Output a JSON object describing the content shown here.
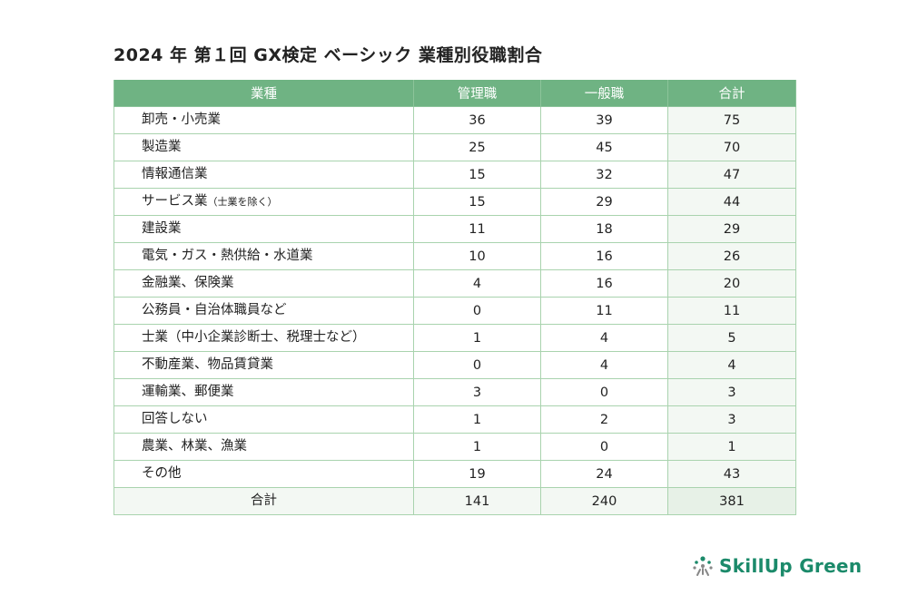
{
  "title": "2024 年 第１回 GX検定 ベーシック 業種別役職割合",
  "table": {
    "headers": [
      "業種",
      "管理職",
      "一般職",
      "合計"
    ],
    "rows": [
      {
        "label": "卸売・小売業",
        "sub": "",
        "manager": "36",
        "general": "39",
        "total": "75"
      },
      {
        "label": "製造業",
        "sub": "",
        "manager": "25",
        "general": "45",
        "total": "70"
      },
      {
        "label": "情報通信業",
        "sub": "",
        "manager": "15",
        "general": "32",
        "total": "47"
      },
      {
        "label": "サービス業",
        "sub": "（士業を除く）",
        "manager": "15",
        "general": "29",
        "total": "44"
      },
      {
        "label": "建設業",
        "sub": "",
        "manager": "11",
        "general": "18",
        "total": "29"
      },
      {
        "label": "電気・ガス・熱供給・水道業",
        "sub": "",
        "manager": "10",
        "general": "16",
        "total": "26"
      },
      {
        "label": "金融業、保険業",
        "sub": "",
        "manager": "4",
        "general": "16",
        "total": "20"
      },
      {
        "label": "公務員・自治体職員など",
        "sub": "",
        "manager": "0",
        "general": "11",
        "total": "11"
      },
      {
        "label": "士業（中小企業診断士、税理士など）",
        "sub": "",
        "manager": "1",
        "general": "4",
        "total": "5"
      },
      {
        "label": "不動産業、物品賃貸業",
        "sub": "",
        "manager": "0",
        "general": "4",
        "total": "4"
      },
      {
        "label": "運輸業、郵便業",
        "sub": "",
        "manager": "3",
        "general": "0",
        "total": "3"
      },
      {
        "label": "回答しない",
        "sub": "",
        "manager": "1",
        "general": "2",
        "total": "3"
      },
      {
        "label": "農業、林業、漁業",
        "sub": "",
        "manager": "1",
        "general": "0",
        "total": "1"
      },
      {
        "label": "その他",
        "sub": "",
        "manager": "19",
        "general": "24",
        "total": "43"
      }
    ],
    "summary": {
      "label": "合計",
      "manager": "141",
      "general": "240",
      "total": "381"
    }
  },
  "logo": {
    "text": "SkillUp Green"
  },
  "colors": {
    "header": "#6fb383",
    "border": "#a9d3ae",
    "logo": "#1b8a6a"
  }
}
